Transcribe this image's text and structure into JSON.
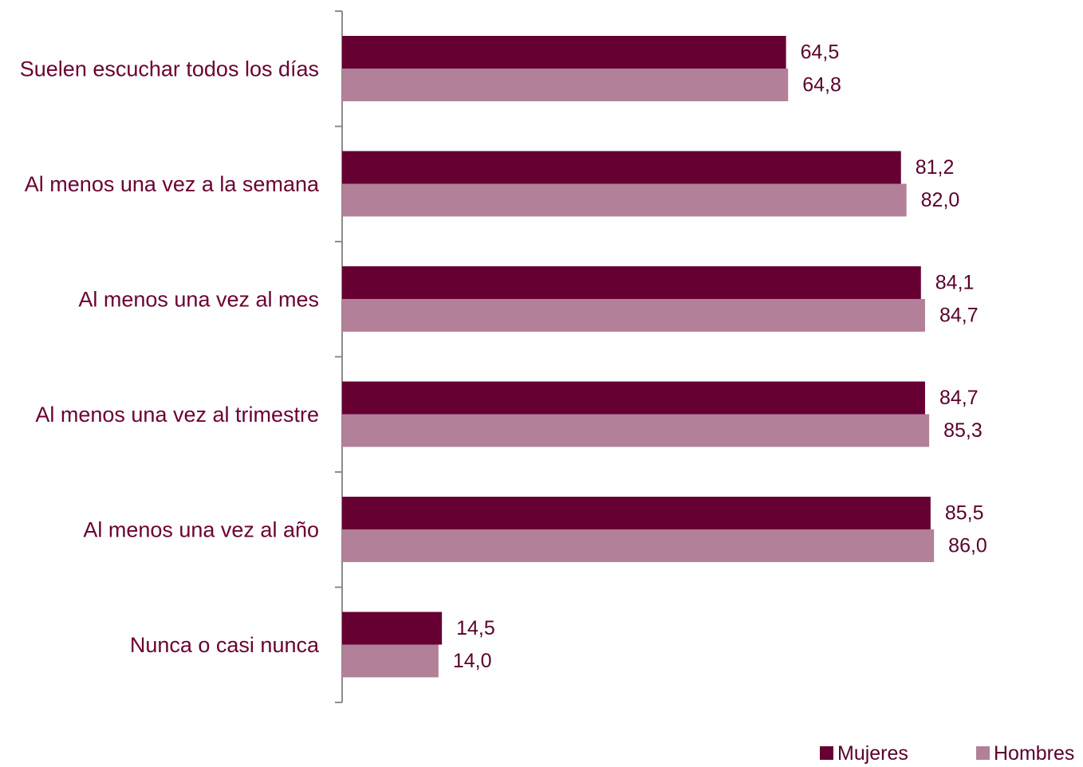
{
  "chart_data": {
    "type": "bar",
    "orientation": "horizontal",
    "categories": [
      "Suelen escuchar todos los días",
      "Al menos una vez a la semana",
      "Al menos una vez al mes",
      "Al menos una vez al trimestre",
      "Al menos una vez al año",
      "Nunca o casi nunca"
    ],
    "series": [
      {
        "name": "Mujeres",
        "color": "#660033",
        "values": [
          64.5,
          81.2,
          84.1,
          84.7,
          85.5,
          14.5
        ],
        "labels": [
          "64,5",
          "81,2",
          "84,1",
          "84,7",
          "85,5",
          "14,5"
        ]
      },
      {
        "name": "Hombres",
        "color": "#b28098",
        "values": [
          64.8,
          82.0,
          84.7,
          85.3,
          86.0,
          14.0
        ],
        "labels": [
          "64,8",
          "82,0",
          "84,7",
          "85,3",
          "86,0",
          "14,0"
        ]
      }
    ],
    "title": "",
    "xlabel": "",
    "ylabel": "",
    "xlim": [
      0,
      100
    ],
    "grid": false,
    "legend_position": "bottom-right"
  }
}
